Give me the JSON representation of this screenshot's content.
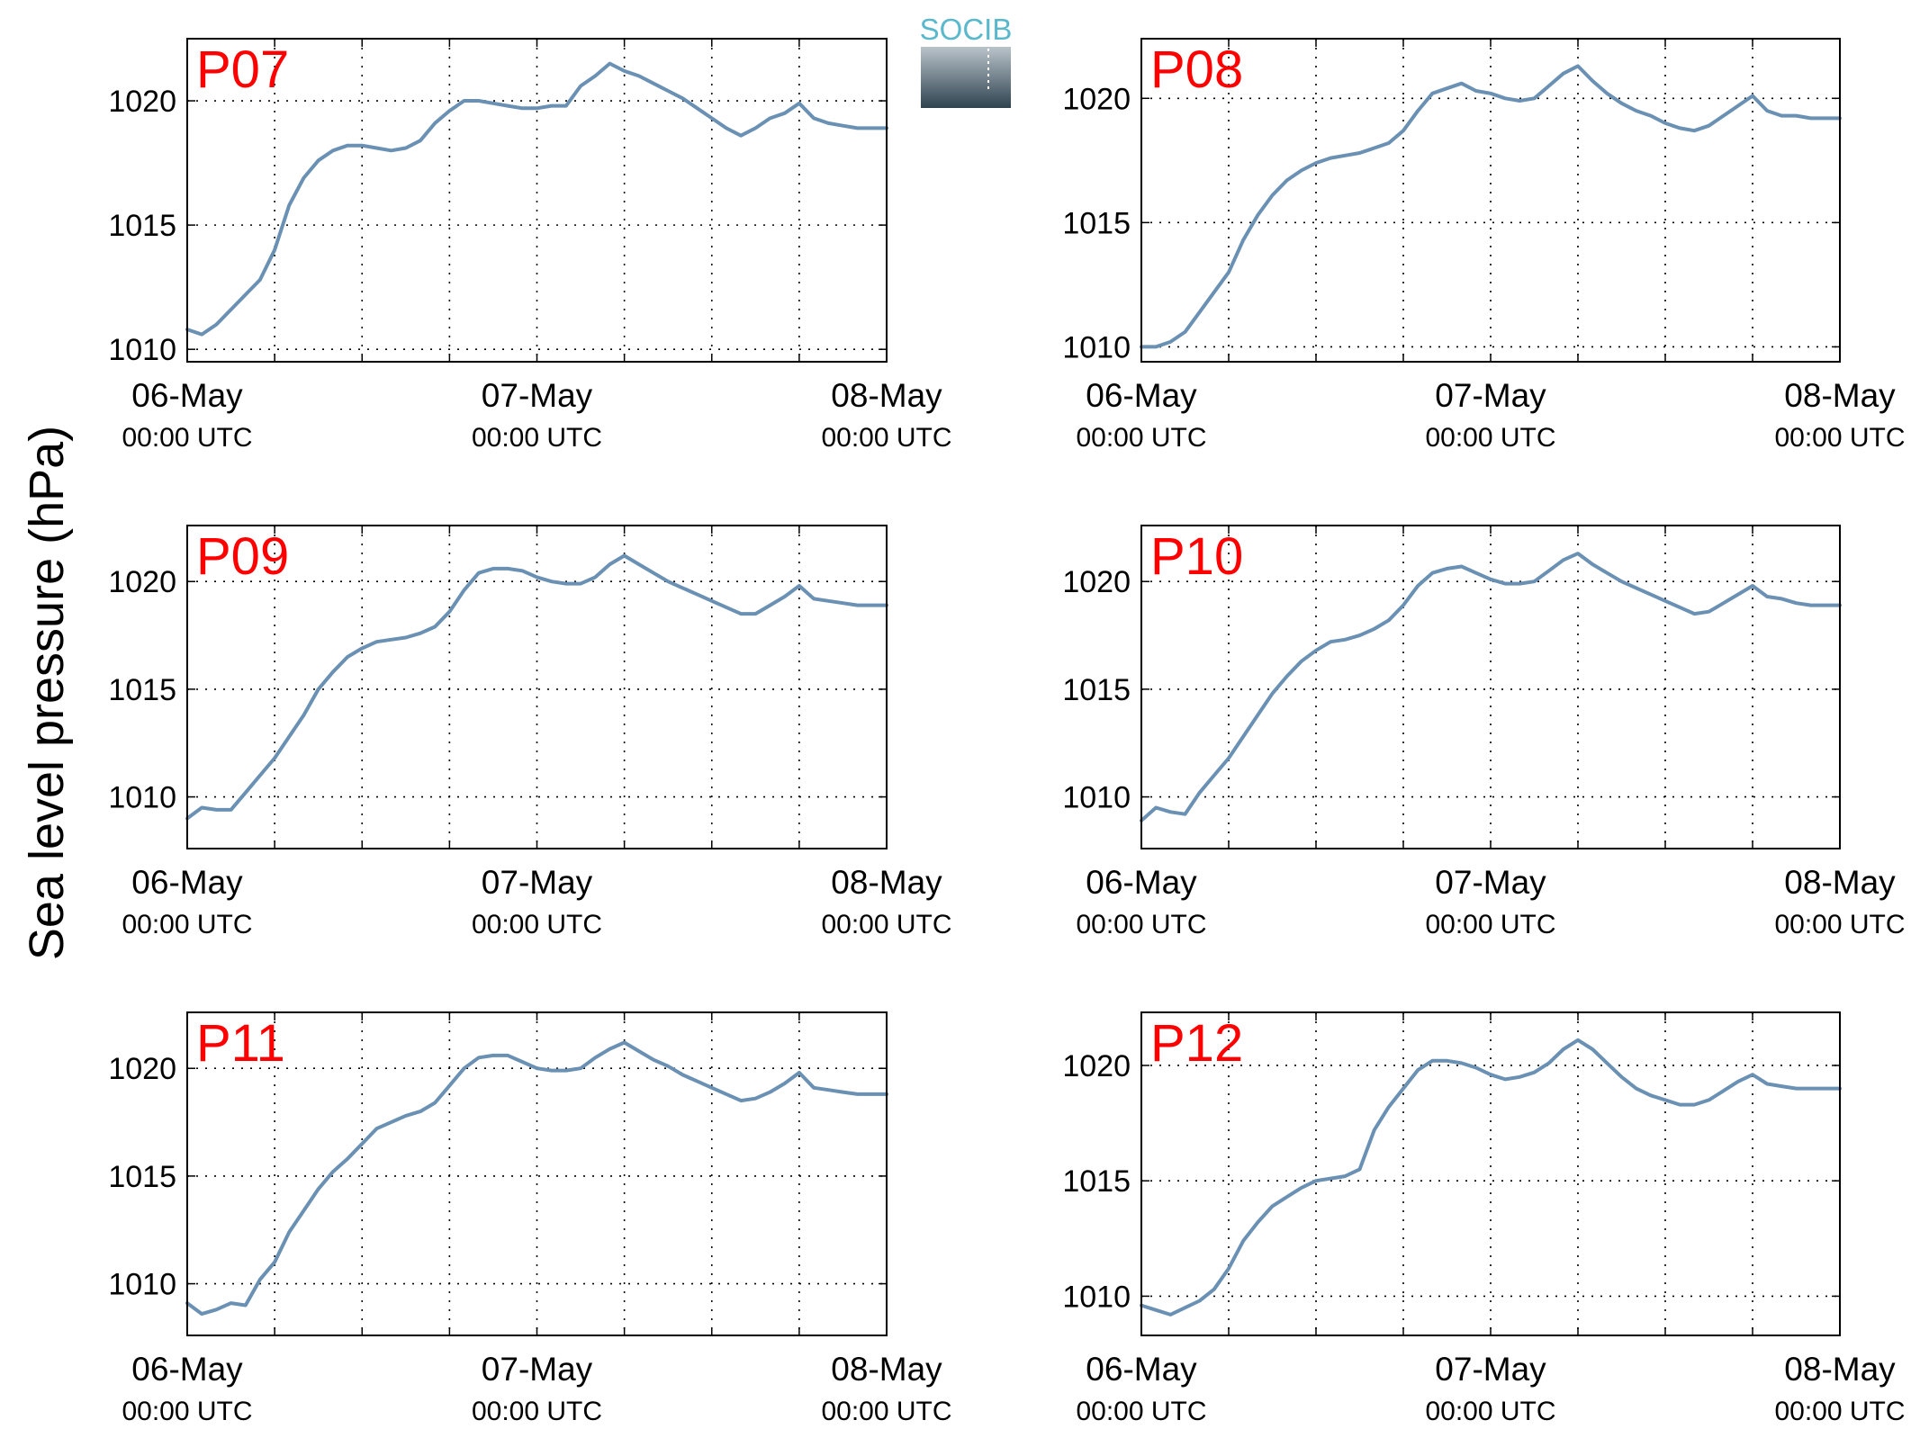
{
  "figure": {
    "ylabel": "Sea level pressure (hPa)",
    "logo_text": "SOCIB"
  },
  "colors": {
    "series_line": "#6a91b4",
    "panel_label": "#ff0000",
    "axis": "#000000",
    "grid": "#000000",
    "logo_text": "#5ab8cc",
    "logo_gradient_top": "#b9c3ca",
    "logo_gradient_bottom": "#2f4350"
  },
  "chart_data": [
    {
      "type": "line",
      "panel_label": "P07",
      "x_unit": "hours since 06-May 00:00 UTC",
      "x_ticks": [
        {
          "value": 0,
          "date": "06-May",
          "time": "00:00 UTC"
        },
        {
          "value": 24,
          "date": "07-May",
          "time": "00:00 UTC"
        },
        {
          "value": 48,
          "date": "08-May",
          "time": "00:00 UTC"
        }
      ],
      "xlim": [
        0,
        48
      ],
      "ylim": [
        1009.5,
        1022.5
      ],
      "y_ticks": [
        1010,
        1015,
        1020
      ],
      "grid": true,
      "series": [
        {
          "x": [
            0,
            1,
            2,
            3,
            4,
            5,
            6,
            7,
            8,
            9,
            10,
            11,
            12,
            13,
            14,
            15,
            16,
            17,
            18,
            19,
            20,
            21,
            22,
            23,
            24,
            25,
            26,
            27,
            28,
            29,
            30,
            31,
            32,
            33,
            34,
            35,
            36,
            37,
            38,
            39,
            40,
            41,
            42,
            43,
            44,
            45,
            46,
            47,
            48
          ],
          "values": [
            1010.8,
            1010.6,
            1011.0,
            1011.6,
            1012.2,
            1012.8,
            1014.0,
            1015.8,
            1016.9,
            1017.6,
            1018.0,
            1018.2,
            1018.2,
            1018.1,
            1018.0,
            1018.1,
            1018.4,
            1019.1,
            1019.6,
            1020.0,
            1020.0,
            1019.9,
            1019.8,
            1019.7,
            1019.7,
            1019.8,
            1019.8,
            1020.6,
            1021.0,
            1021.5,
            1021.2,
            1021.0,
            1020.7,
            1020.4,
            1020.1,
            1019.7,
            1019.3,
            1018.9,
            1018.6,
            1018.9,
            1019.3,
            1019.5,
            1019.9,
            1019.3,
            1019.1,
            1019.0,
            1018.9,
            1018.9,
            1018.9
          ]
        }
      ]
    },
    {
      "type": "line",
      "panel_label": "P08",
      "x_unit": "hours since 06-May 00:00 UTC",
      "x_ticks": [
        {
          "value": 0,
          "date": "06-May",
          "time": "00:00 UTC"
        },
        {
          "value": 24,
          "date": "07-May",
          "time": "00:00 UTC"
        },
        {
          "value": 48,
          "date": "08-May",
          "time": "00:00 UTC"
        }
      ],
      "xlim": [
        0,
        48
      ],
      "ylim": [
        1009.4,
        1022.4
      ],
      "y_ticks": [
        1010,
        1015,
        1020
      ],
      "grid": true,
      "series": [
        {
          "x": [
            0,
            1,
            2,
            3,
            4,
            5,
            6,
            7,
            8,
            9,
            10,
            11,
            12,
            13,
            14,
            15,
            16,
            17,
            18,
            19,
            20,
            21,
            22,
            23,
            24,
            25,
            26,
            27,
            28,
            29,
            30,
            31,
            32,
            33,
            34,
            35,
            36,
            37,
            38,
            39,
            40,
            41,
            42,
            43,
            44,
            45,
            46,
            47,
            48
          ],
          "values": [
            1010.0,
            1010.0,
            1010.2,
            1010.6,
            1011.4,
            1012.2,
            1013.0,
            1014.3,
            1015.3,
            1016.1,
            1016.7,
            1017.1,
            1017.4,
            1017.6,
            1017.7,
            1017.8,
            1018.0,
            1018.2,
            1018.7,
            1019.5,
            1020.2,
            1020.4,
            1020.6,
            1020.3,
            1020.2,
            1020.0,
            1019.9,
            1020.0,
            1020.5,
            1021.0,
            1021.3,
            1020.7,
            1020.2,
            1019.8,
            1019.5,
            1019.3,
            1019.0,
            1018.8,
            1018.7,
            1018.9,
            1019.3,
            1019.7,
            1020.1,
            1019.5,
            1019.3,
            1019.3,
            1019.2,
            1019.2,
            1019.2
          ]
        }
      ]
    },
    {
      "type": "line",
      "panel_label": "P09",
      "x_unit": "hours since 06-May 00:00 UTC",
      "x_ticks": [
        {
          "value": 0,
          "date": "06-May",
          "time": "00:00 UTC"
        },
        {
          "value": 24,
          "date": "07-May",
          "time": "00:00 UTC"
        },
        {
          "value": 48,
          "date": "08-May",
          "time": "00:00 UTC"
        }
      ],
      "xlim": [
        0,
        48
      ],
      "ylim": [
        1007.6,
        1022.6
      ],
      "y_ticks": [
        1010,
        1015,
        1020
      ],
      "grid": true,
      "series": [
        {
          "x": [
            0,
            1,
            2,
            3,
            4,
            5,
            6,
            7,
            8,
            9,
            10,
            11,
            12,
            13,
            14,
            15,
            16,
            17,
            18,
            19,
            20,
            21,
            22,
            23,
            24,
            25,
            26,
            27,
            28,
            29,
            30,
            31,
            32,
            33,
            34,
            35,
            36,
            37,
            38,
            39,
            40,
            41,
            42,
            43,
            44,
            45,
            46,
            47,
            48
          ],
          "values": [
            1009.0,
            1009.5,
            1009.4,
            1009.4,
            1010.2,
            1011.0,
            1011.8,
            1012.8,
            1013.8,
            1015.0,
            1015.8,
            1016.5,
            1016.9,
            1017.2,
            1017.3,
            1017.4,
            1017.6,
            1017.9,
            1018.6,
            1019.6,
            1020.4,
            1020.6,
            1020.6,
            1020.5,
            1020.2,
            1020.0,
            1019.9,
            1019.9,
            1020.2,
            1020.8,
            1021.2,
            1020.8,
            1020.4,
            1020.0,
            1019.7,
            1019.4,
            1019.1,
            1018.8,
            1018.5,
            1018.5,
            1018.9,
            1019.3,
            1019.8,
            1019.2,
            1019.1,
            1019.0,
            1018.9,
            1018.9,
            1018.9
          ]
        }
      ]
    },
    {
      "type": "line",
      "panel_label": "P10",
      "x_unit": "hours since 06-May 00:00 UTC",
      "x_ticks": [
        {
          "value": 0,
          "date": "06-May",
          "time": "00:00 UTC"
        },
        {
          "value": 24,
          "date": "07-May",
          "time": "00:00 UTC"
        },
        {
          "value": 48,
          "date": "08-May",
          "time": "00:00 UTC"
        }
      ],
      "xlim": [
        0,
        48
      ],
      "ylim": [
        1007.6,
        1022.6
      ],
      "y_ticks": [
        1010,
        1015,
        1020
      ],
      "grid": true,
      "series": [
        {
          "x": [
            0,
            1,
            2,
            3,
            4,
            5,
            6,
            7,
            8,
            9,
            10,
            11,
            12,
            13,
            14,
            15,
            16,
            17,
            18,
            19,
            20,
            21,
            22,
            23,
            24,
            25,
            26,
            27,
            28,
            29,
            30,
            31,
            32,
            33,
            34,
            35,
            36,
            37,
            38,
            39,
            40,
            41,
            42,
            43,
            44,
            45,
            46,
            47,
            48
          ],
          "values": [
            1008.9,
            1009.5,
            1009.3,
            1009.2,
            1010.2,
            1011.0,
            1011.8,
            1012.8,
            1013.8,
            1014.8,
            1015.6,
            1016.3,
            1016.8,
            1017.2,
            1017.3,
            1017.5,
            1017.8,
            1018.2,
            1018.9,
            1019.8,
            1020.4,
            1020.6,
            1020.7,
            1020.4,
            1020.1,
            1019.9,
            1019.9,
            1020.0,
            1020.5,
            1021.0,
            1021.3,
            1020.8,
            1020.4,
            1020.0,
            1019.7,
            1019.4,
            1019.1,
            1018.8,
            1018.5,
            1018.6,
            1019.0,
            1019.4,
            1019.8,
            1019.3,
            1019.2,
            1019.0,
            1018.9,
            1018.9,
            1018.9
          ]
        }
      ]
    },
    {
      "type": "line",
      "panel_label": "P11",
      "x_unit": "hours since 06-May 00:00 UTC",
      "x_ticks": [
        {
          "value": 0,
          "date": "06-May",
          "time": "00:00 UTC"
        },
        {
          "value": 24,
          "date": "07-May",
          "time": "00:00 UTC"
        },
        {
          "value": 48,
          "date": "08-May",
          "time": "00:00 UTC"
        }
      ],
      "xlim": [
        0,
        48
      ],
      "ylim": [
        1007.6,
        1022.6
      ],
      "y_ticks": [
        1010,
        1015,
        1020
      ],
      "grid": true,
      "series": [
        {
          "x": [
            0,
            1,
            2,
            3,
            4,
            5,
            6,
            7,
            8,
            9,
            10,
            11,
            12,
            13,
            14,
            15,
            16,
            17,
            18,
            19,
            20,
            21,
            22,
            23,
            24,
            25,
            26,
            27,
            28,
            29,
            30,
            31,
            32,
            33,
            34,
            35,
            36,
            37,
            38,
            39,
            40,
            41,
            42,
            43,
            44,
            45,
            46,
            47,
            48
          ],
          "values": [
            1009.1,
            1008.6,
            1008.8,
            1009.1,
            1009.0,
            1010.2,
            1011.0,
            1012.4,
            1013.4,
            1014.4,
            1015.2,
            1015.8,
            1016.5,
            1017.2,
            1017.5,
            1017.8,
            1018.0,
            1018.4,
            1019.2,
            1020.0,
            1020.5,
            1020.6,
            1020.6,
            1020.3,
            1020.0,
            1019.9,
            1019.9,
            1020.0,
            1020.5,
            1020.9,
            1021.2,
            1020.8,
            1020.4,
            1020.1,
            1019.7,
            1019.4,
            1019.1,
            1018.8,
            1018.5,
            1018.6,
            1018.9,
            1019.3,
            1019.8,
            1019.1,
            1019.0,
            1018.9,
            1018.8,
            1018.8,
            1018.8
          ]
        }
      ]
    },
    {
      "type": "line",
      "panel_label": "P12",
      "x_unit": "hours since 06-May 00:00 UTC",
      "x_ticks": [
        {
          "value": 0,
          "date": "06-May",
          "time": "00:00 UTC"
        },
        {
          "value": 24,
          "date": "07-May",
          "time": "00:00 UTC"
        },
        {
          "value": 48,
          "date": "08-May",
          "time": "00:00 UTC"
        }
      ],
      "xlim": [
        0,
        48
      ],
      "ylim": [
        1008.3,
        1022.3
      ],
      "y_ticks": [
        1010,
        1015,
        1020
      ],
      "grid": true,
      "series": [
        {
          "x": [
            0,
            1,
            2,
            3,
            4,
            5,
            6,
            7,
            8,
            9,
            10,
            11,
            12,
            13,
            14,
            15,
            16,
            17,
            18,
            19,
            20,
            21,
            22,
            23,
            24,
            25,
            26,
            27,
            28,
            29,
            30,
            31,
            32,
            33,
            34,
            35,
            36,
            37,
            38,
            39,
            40,
            41,
            42,
            43,
            44,
            45,
            46,
            47,
            48
          ],
          "values": [
            1009.6,
            1009.4,
            1009.2,
            1009.5,
            1009.8,
            1010.3,
            1011.2,
            1012.4,
            1013.2,
            1013.9,
            1014.3,
            1014.7,
            1015.0,
            1015.1,
            1015.2,
            1015.5,
            1017.2,
            1018.2,
            1019.0,
            1019.8,
            1020.2,
            1020.2,
            1020.1,
            1019.9,
            1019.6,
            1019.4,
            1019.5,
            1019.7,
            1020.1,
            1020.7,
            1021.1,
            1020.7,
            1020.1,
            1019.5,
            1019.0,
            1018.7,
            1018.5,
            1018.3,
            1018.3,
            1018.5,
            1018.9,
            1019.3,
            1019.6,
            1019.2,
            1019.1,
            1019.0,
            1019.0,
            1019.0,
            1019.0
          ]
        }
      ]
    }
  ]
}
